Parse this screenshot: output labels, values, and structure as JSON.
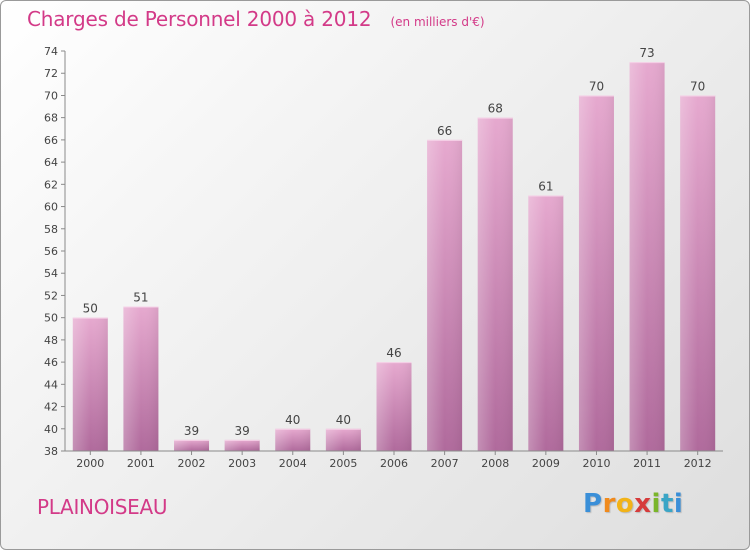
{
  "header": {
    "title": "Charges de Personnel 2000 à 2012",
    "subtitle": "(en milliers d'€)"
  },
  "footer": {
    "place_name": "PLAINOISEAU",
    "brand": "Proxiti"
  },
  "colors": {
    "accent": "#d33a88",
    "bar_top": "#e6a9cf",
    "bar_bottom": "#b06a9c",
    "axis": "#8a8a8a"
  },
  "chart_data": {
    "type": "bar",
    "title": "Charges de Personnel 2000 à 2012",
    "subtitle": "(en milliers d'€)",
    "xlabel": "",
    "ylabel": "",
    "categories": [
      "2000",
      "2001",
      "2002",
      "2003",
      "2004",
      "2005",
      "2006",
      "2007",
      "2008",
      "2009",
      "2010",
      "2011",
      "2012"
    ],
    "values": [
      50,
      51,
      39,
      39,
      40,
      40,
      46,
      66,
      68,
      61,
      70,
      73,
      70
    ],
    "ylim": [
      38,
      74
    ],
    "yticks": [
      38,
      40,
      42,
      44,
      46,
      48,
      50,
      52,
      54,
      56,
      58,
      60,
      62,
      64,
      66,
      68,
      70,
      72,
      74
    ],
    "grid": false,
    "legend": "none"
  }
}
